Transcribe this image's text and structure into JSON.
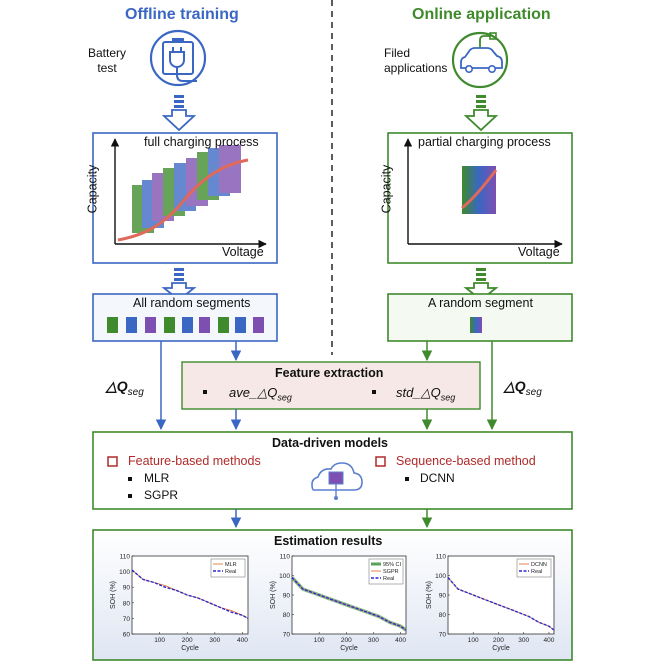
{
  "left": {
    "title": "Offline training",
    "source_label_line1": "Battery",
    "source_label_line2": "test",
    "curve_caption": "full charging process",
    "y_axis": "Capacity",
    "x_axis": "Voltage",
    "segments_caption": "All random segments"
  },
  "right": {
    "title": "Online application",
    "source_label_line1": "Filed",
    "source_label_line2": "applications",
    "curve_caption": "partial charging process",
    "y_axis": "Capacity",
    "x_axis": "Voltage",
    "segments_caption": "A random segment"
  },
  "feature_extraction": {
    "title": "Feature extraction",
    "item1": "ave_△Q",
    "item1_sub": "seg",
    "item2": "std_△Q",
    "item2_sub": "seg"
  },
  "delta_q_label": "△Q",
  "delta_q_sub": "seg",
  "models": {
    "title": "Data-driven models",
    "feature_group": "Feature-based methods",
    "feature_items": [
      "MLR",
      "SGPR"
    ],
    "sequence_group": "Sequence-based method",
    "sequence_items": [
      "DCNN"
    ]
  },
  "results": {
    "title": "Estimation results"
  },
  "colors": {
    "blue": "#3b67c4",
    "green": "#3e8a2c",
    "purple": "#7d4fb0",
    "feature_box_fill": "#f6e8e6",
    "red_text": "#b02a2a"
  },
  "chart_data": [
    {
      "type": "line",
      "title": "",
      "xlabel": "Cycle",
      "ylabel": "SOH (%)",
      "xlim": [
        0,
        420
      ],
      "ylim": [
        60,
        110
      ],
      "xticks": [
        100,
        200,
        300,
        400
      ],
      "yticks": [
        60,
        70,
        80,
        90,
        100,
        110
      ],
      "legend_position": "top-right",
      "series": [
        {
          "name": "MLR",
          "x": [
            0,
            40,
            80,
            120,
            160,
            200,
            240,
            280,
            320,
            360,
            400,
            420
          ],
          "values": [
            101,
            95,
            93,
            91,
            88,
            85,
            83,
            80,
            77,
            75,
            72,
            70
          ]
        },
        {
          "name": "Real",
          "x": [
            0,
            40,
            80,
            120,
            160,
            200,
            240,
            280,
            320,
            360,
            400,
            420
          ],
          "values": [
            101,
            95,
            93,
            90,
            88,
            85,
            83,
            80,
            77,
            74,
            72,
            70
          ]
        }
      ]
    },
    {
      "type": "line",
      "title": "",
      "xlabel": "Cycle",
      "ylabel": "SOH (%)",
      "xlim": [
        0,
        420
      ],
      "ylim": [
        70,
        110
      ],
      "xticks": [
        100,
        200,
        300,
        400
      ],
      "yticks": [
        70,
        80,
        90,
        100,
        110
      ],
      "legend_position": "top-right",
      "series": [
        {
          "name": "95% CI",
          "x": [
            0,
            40,
            80,
            120,
            160,
            200,
            240,
            280,
            320,
            360,
            400,
            420
          ],
          "values": [
            99,
            93,
            91,
            89,
            87,
            85,
            83,
            81,
            79,
            76,
            74,
            72
          ]
        },
        {
          "name": "SGPR",
          "x": [
            0,
            40,
            80,
            120,
            160,
            200,
            240,
            280,
            320,
            360,
            400,
            420
          ],
          "values": [
            99,
            93,
            91,
            89,
            87,
            85,
            83,
            81,
            79,
            76,
            74,
            72
          ]
        },
        {
          "name": "Real",
          "x": [
            0,
            40,
            80,
            120,
            160,
            200,
            240,
            280,
            320,
            360,
            400,
            420
          ],
          "values": [
            99,
            93,
            91,
            89,
            87,
            85,
            83,
            81,
            79,
            76,
            74,
            72
          ]
        }
      ]
    },
    {
      "type": "line",
      "title": "",
      "xlabel": "Cycle",
      "ylabel": "SOH (%)",
      "xlim": [
        0,
        420
      ],
      "ylim": [
        70,
        110
      ],
      "xticks": [
        100,
        200,
        300,
        400
      ],
      "yticks": [
        70,
        80,
        90,
        100,
        110
      ],
      "legend_position": "top-right",
      "series": [
        {
          "name": "DCNN",
          "x": [
            0,
            40,
            80,
            120,
            160,
            200,
            240,
            280,
            320,
            360,
            400,
            420
          ],
          "values": [
            99,
            93,
            91,
            89,
            87,
            85,
            83,
            81,
            79,
            76,
            74,
            72
          ]
        },
        {
          "name": "Real",
          "x": [
            0,
            40,
            80,
            120,
            160,
            200,
            240,
            280,
            320,
            360,
            400,
            420
          ],
          "values": [
            99,
            93,
            91,
            89,
            87,
            85,
            83,
            81,
            79,
            76,
            74,
            72
          ]
        }
      ]
    }
  ]
}
